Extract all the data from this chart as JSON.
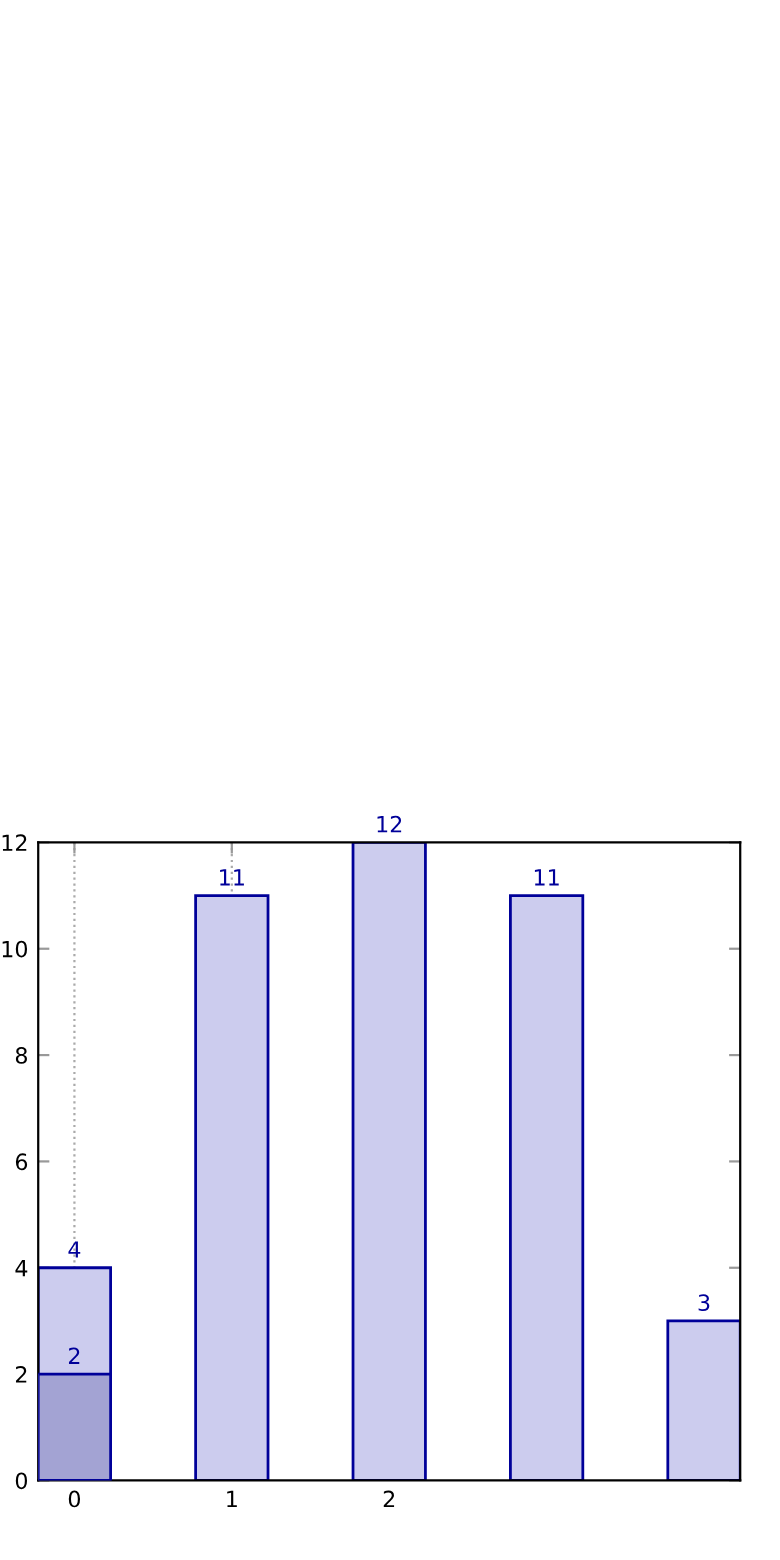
{
  "chart_data": {
    "type": "bar",
    "x": [
      0,
      1,
      2,
      3,
      4
    ],
    "series": [
      {
        "color": "#ccccee",
        "values": [
          4,
          11,
          12,
          11,
          3
        ]
      },
      {
        "color": "#a3a3d3",
        "values": [
          2,
          null,
          null,
          null,
          null
        ]
      }
    ],
    "xlim": [
      -0.23,
      4.23
    ],
    "xticks": [
      0,
      1,
      2
    ],
    "ylim": [
      0,
      12
    ],
    "yticks": [
      0,
      2,
      4,
      6,
      8,
      10,
      12
    ],
    "grid": "x",
    "data_labels": true
  }
}
